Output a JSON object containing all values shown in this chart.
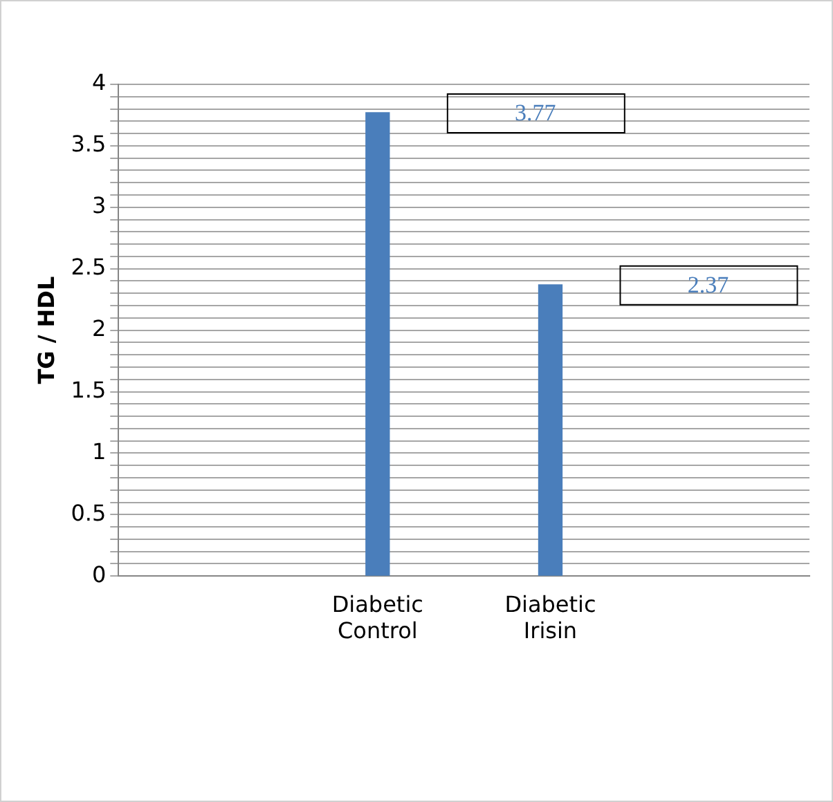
{
  "chart_data": {
    "type": "bar",
    "ylabel": "TG / HDL",
    "categories": [
      null,
      "Diabetic Control",
      "Diabetic Irisin",
      null
    ],
    "values": [
      null,
      3.77,
      2.37,
      null
    ],
    "color": "#4a7ebb",
    "grid": "y",
    "legend": false,
    "annotations": [
      "3.77",
      "2.37"
    ],
    "ylim": [
      0,
      4
    ],
    "yticks": [
      0,
      {
        "value": 0.1,
        "label": null
      },
      {
        "value": 0.2,
        "label": null
      },
      {
        "value": 0.3,
        "label": null
      },
      {
        "value": 0.4,
        "label": null
      },
      0.5,
      {
        "value": 0.6,
        "label": null
      },
      {
        "value": 0.7,
        "label": null
      },
      {
        "value": 0.8,
        "label": null
      },
      {
        "value": 0.9,
        "label": null
      },
      1,
      {
        "value": 1.1,
        "label": null
      },
      {
        "value": 1.2,
        "label": null
      },
      {
        "value": 1.3,
        "label": null
      },
      {
        "value": 1.4,
        "label": null
      },
      1.5,
      {
        "value": 1.6,
        "label": null
      },
      {
        "value": 1.7,
        "label": null
      },
      {
        "value": 1.8,
        "label": null
      },
      {
        "value": 1.9,
        "label": null
      },
      2,
      {
        "value": 2.1,
        "label": null
      },
      {
        "value": 2.2,
        "label": null
      },
      {
        "value": 2.3,
        "label": null
      },
      {
        "value": 2.4,
        "label": null
      },
      2.5,
      {
        "value": 2.6,
        "label": null
      },
      {
        "value": 2.7,
        "label": null
      },
      {
        "value": 2.8,
        "label": null
      },
      {
        "value": 2.9,
        "label": null
      },
      3,
      {
        "value": 3.1,
        "label": null
      },
      {
        "value": 3.2,
        "label": null
      },
      {
        "value": 3.3,
        "label": null
      },
      {
        "value": 3.4,
        "label": null
      },
      3.5,
      {
        "value": 3.6,
        "label": null
      },
      {
        "value": 3.7,
        "label": null
      },
      {
        "value": 3.8,
        "label": null
      },
      {
        "value": 3.9,
        "label": null
      },
      4
    ]
  }
}
